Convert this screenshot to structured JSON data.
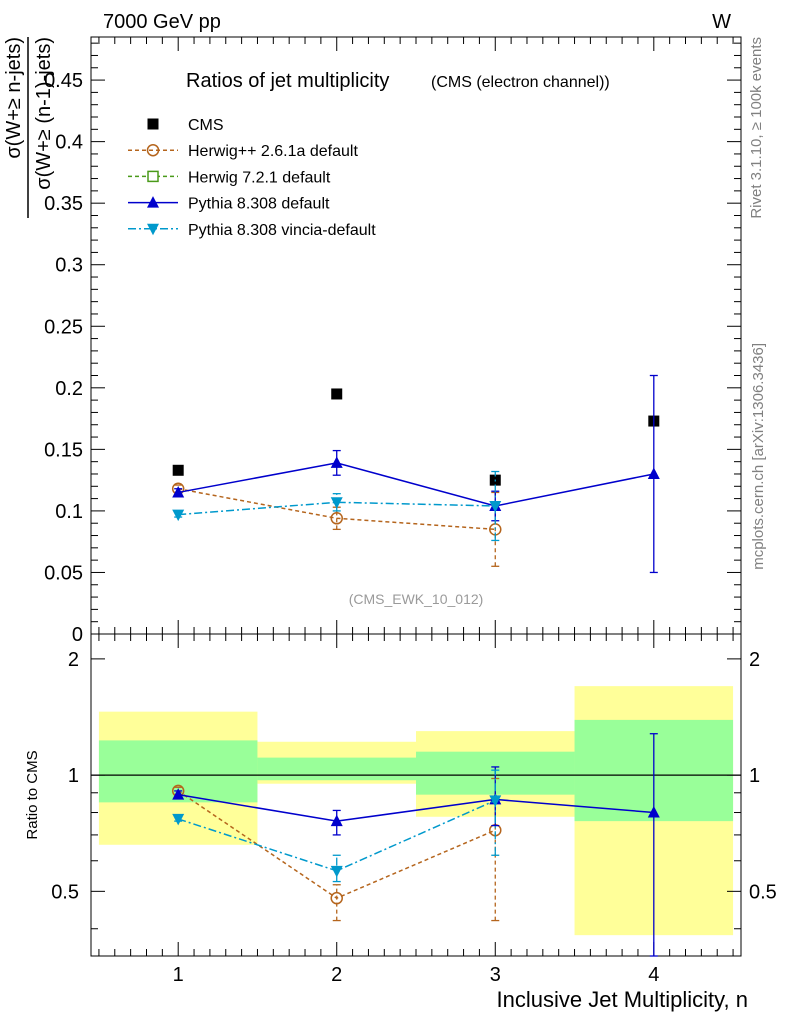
{
  "header": {
    "left": "7000 GeV pp",
    "right": "W"
  },
  "side_labels": {
    "rivet": "Rivet 3.1.10, ≥ 100k events",
    "mcplots": "mcplots.cern.ch [arXiv:1306.3436]"
  },
  "chart_data": [
    {
      "type": "scatter",
      "panel": "main",
      "title": "Ratios of jet multiplicity",
      "subtitle": "(CMS (electron channel))",
      "ylabel_numerator": "σ(W+≥ n-jets)",
      "ylabel_denominator": "σ(W+≥ (n-1)-jets)",
      "watermark": "(CMS_EWK_10_012)",
      "xlim": [
        0.45,
        4.55
      ],
      "ylim": [
        0,
        0.485
      ],
      "yticks": [
        0,
        0.05,
        0.1,
        0.15,
        0.2,
        0.25,
        0.3,
        0.35,
        0.4,
        0.45
      ],
      "ytick_labels": [
        "0",
        "0.05",
        "0.1",
        "0.15",
        "0.2",
        "0.25",
        "0.3",
        "0.35",
        "0.4",
        "0.45"
      ],
      "legend_position": "top-left",
      "series": [
        {
          "name": "CMS",
          "x": [
            1,
            2,
            3,
            4
          ],
          "y": [
            0.133,
            0.195,
            0.125,
            0.173
          ],
          "err": [
            0,
            0,
            0,
            0
          ],
          "color": "#000000",
          "marker": "square",
          "line": "none"
        },
        {
          "name": "Herwig++ 2.6.1a default",
          "x": [
            1,
            2,
            3
          ],
          "y": [
            0.118,
            0.094,
            0.085
          ],
          "err": [
            0.003,
            0.009,
            0.03
          ],
          "color": "#b5651d",
          "marker": "circle-open",
          "line": "dashed"
        },
        {
          "name": "Herwig 7.2.1 default",
          "x": [],
          "y": [],
          "err": [],
          "color": "#4a9a1a",
          "marker": "square-open",
          "line": "dashed"
        },
        {
          "name": "Pythia 8.308 default",
          "x": [
            1,
            2,
            3,
            4
          ],
          "y": [
            0.115,
            0.139,
            0.104,
            0.13
          ],
          "err": [
            0.003,
            0.01,
            0.012,
            0.08
          ],
          "color": "#0000cc",
          "marker": "triangle-up",
          "line": "solid"
        },
        {
          "name": "Pythia 8.308 vincia-default",
          "x": [
            1,
            2,
            3
          ],
          "y": [
            0.097,
            0.107,
            0.104
          ],
          "err": [
            0.002,
            0.007,
            0.028
          ],
          "color": "#0099cc",
          "marker": "triangle-down",
          "line": "dashdot"
        }
      ]
    },
    {
      "type": "scatter",
      "panel": "ratio",
      "ylabel": "Ratio to CMS",
      "xlabel": "Inclusive Jet Multiplicity, n",
      "xlim": [
        0.45,
        4.55
      ],
      "ylim": [
        0.34,
        2.32
      ],
      "log_y": true,
      "reference_line": 1,
      "yticks": [
        0.5,
        1,
        2
      ],
      "ytick_labels": [
        "0.5",
        "1",
        "2"
      ],
      "xticks": [
        1,
        2,
        3,
        4
      ],
      "xtick_labels": [
        "1",
        "2",
        "3",
        "4"
      ],
      "bands": [
        {
          "xrange": [
            0.5,
            1.5
          ],
          "yellow": [
            0.66,
            1.46
          ],
          "green": [
            0.85,
            1.23
          ]
        },
        {
          "xrange": [
            1.5,
            2.5
          ],
          "yellow": [
            0.95,
            1.22
          ],
          "green": [
            0.97,
            1.11
          ]
        },
        {
          "xrange": [
            2.5,
            3.5
          ],
          "yellow": [
            0.78,
            1.3
          ],
          "green": [
            0.89,
            1.15
          ]
        },
        {
          "xrange": [
            3.5,
            4.5
          ],
          "yellow": [
            0.385,
            1.7
          ],
          "green": [
            0.76,
            1.39
          ]
        }
      ],
      "series": [
        {
          "name": "Herwig++ 2.6.1a default",
          "x": [
            1,
            2,
            3
          ],
          "y": [
            0.91,
            0.48,
            0.72
          ],
          "lo": [
            0.89,
            0.42,
            0.42
          ],
          "hi": [
            0.93,
            0.52,
            0.98
          ],
          "color": "#b5651d",
          "marker": "circle-open",
          "line": "dashed"
        },
        {
          "name": "Pythia 8.308 default",
          "x": [
            1,
            2,
            3,
            4
          ],
          "y": [
            0.89,
            0.76,
            0.865,
            0.8
          ],
          "lo": [
            0.87,
            0.7,
            0.74,
            0.34
          ],
          "hi": [
            0.91,
            0.81,
            1.05,
            1.28
          ],
          "color": "#0000cc",
          "marker": "triangle-up",
          "line": "solid"
        },
        {
          "name": "Pythia 8.308 vincia-default",
          "x": [
            1,
            2,
            3
          ],
          "y": [
            0.77,
            0.565,
            0.86
          ],
          "lo": [
            0.76,
            0.53,
            0.62
          ],
          "hi": [
            0.78,
            0.62,
            1.03
          ],
          "color": "#0099cc",
          "marker": "triangle-down",
          "line": "dashdot"
        }
      ]
    }
  ]
}
